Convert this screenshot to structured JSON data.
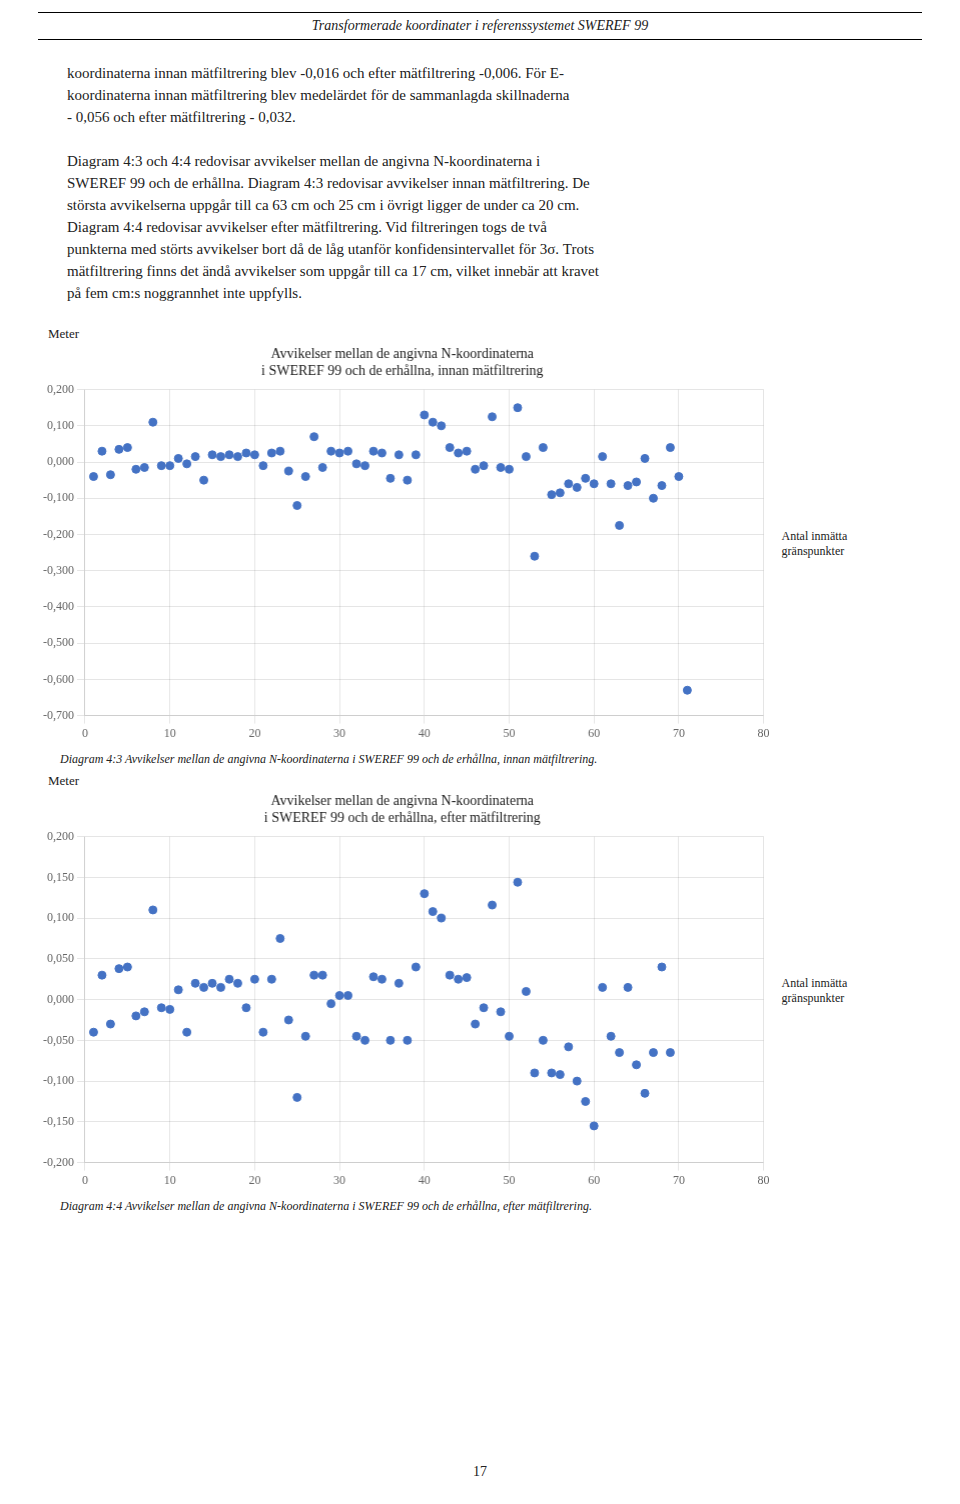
{
  "header": "Transformerade koordinater i referenssystemet SWEREF 99",
  "body_lines": [
    [
      "koordinaterna innan mätfiltrering blev -0,016 och efter mätfiltrering -0,006. För E-",
      "koordinaterna innan mätfiltrering blev medelärdet för de sammanlagda skillnaderna",
      "- 0,056 och efter mätfiltrering - 0,032."
    ],
    [
      "Diagram 4:3 och 4:4 redovisar avvikelser mellan de angivna N-koordinaterna i",
      "SWEREF 99 och de erhållna. Diagram 4:3 redovisar avvikelser innan mätfiltrering. De",
      "största avvikelserna uppgår till ca 63 cm och 25 cm i övrigt ligger de under ca 20 cm.",
      "Diagram 4:4 redovisar avvikelser efter mätfiltrering. Vid filtreringen togs de två",
      "punkterna med störts avvikelser bort då de låg utanför konfidensintervallet för 3σ. Trots",
      "mätfiltrering finns det ändå avvikelser som uppgår till ca 17 cm, vilket innebär att kravet",
      "på fem cm:s noggrannhet inte uppfylls."
    ]
  ],
  "page_number": "17",
  "chart_data": [
    {
      "type": "scatter",
      "title": [
        "Avvikelser mellan de angivna N-koordinaterna",
        "i SWEREF 99 och de erhållna, innan mätfiltrering"
      ],
      "ylabel": "Meter",
      "xlabel": "Antal inmätta\ngränspunkter",
      "caption": "Diagram 4:3 Avvikelser mellan de angivna N-koordinaterna i SWEREF 99 och de erhållna, innan mätfiltrering.",
      "x": [
        1,
        2,
        3,
        4,
        5,
        6,
        7,
        8,
        9,
        10,
        11,
        12,
        13,
        14,
        15,
        16,
        17,
        18,
        19,
        20,
        21,
        22,
        23,
        24,
        25,
        26,
        27,
        28,
        29,
        30,
        31,
        32,
        33,
        34,
        35,
        36,
        37,
        38,
        39,
        40,
        41,
        42,
        43,
        44,
        45,
        46,
        47,
        48,
        49,
        50,
        51,
        52,
        53,
        54,
        55,
        56,
        57,
        58,
        59,
        60,
        61,
        62,
        63,
        64,
        65,
        66,
        67,
        68,
        69,
        70,
        71
      ],
      "values": [
        -0.04,
        0.03,
        -0.035,
        0.035,
        0.04,
        -0.02,
        -0.015,
        0.11,
        -0.01,
        -0.01,
        0.01,
        -0.005,
        0.015,
        -0.05,
        0.02,
        0.015,
        0.02,
        0.015,
        0.025,
        0.02,
        -0.01,
        0.025,
        0.03,
        -0.025,
        -0.12,
        -0.04,
        0.07,
        -0.015,
        0.03,
        0.025,
        0.03,
        -0.005,
        -0.01,
        0.03,
        0.025,
        -0.045,
        0.02,
        -0.05,
        0.02,
        0.13,
        0.11,
        0.1,
        0.04,
        0.025,
        0.03,
        -0.02,
        -0.01,
        0.125,
        -0.015,
        -0.02,
        0.15,
        0.015,
        -0.26,
        0.04,
        -0.09,
        -0.085,
        -0.06,
        -0.07,
        -0.045,
        -0.06,
        0.015,
        -0.06,
        -0.175,
        -0.065,
        -0.055,
        0.01,
        -0.1,
        -0.065,
        0.04,
        -0.04,
        -0.63
      ],
      "color": "#4472C4",
      "xlim": [
        0,
        80
      ],
      "ylim": [
        -0.7,
        0.2
      ],
      "xticks": [
        0,
        10,
        20,
        30,
        40,
        50,
        60,
        70,
        80
      ],
      "yticks": [
        {
          "value": 0.2,
          "label": "0,200"
        },
        {
          "value": 0.1,
          "label": "0,100"
        },
        {
          "value": 0.0,
          "label": "0,000"
        },
        {
          "value": -0.1,
          "label": "-0,100"
        },
        {
          "value": -0.2,
          "label": "-0,200"
        },
        {
          "value": -0.3,
          "label": "-0,300"
        },
        {
          "value": -0.4,
          "label": "-0,400"
        },
        {
          "value": -0.5,
          "label": "-0,500"
        },
        {
          "value": -0.6,
          "label": "-0,600"
        },
        {
          "value": -0.7,
          "label": "-0,700"
        }
      ],
      "grid": true
    },
    {
      "type": "scatter",
      "title": [
        "Avvikelser mellan de angivna N-koordinaterna",
        "i SWEREF 99 och de erhållna, efter mätfiltrering"
      ],
      "ylabel": "Meter",
      "xlabel": "Antal inmätta\ngränspunkter",
      "caption": "Diagram 4:4 Avvikelser mellan de angivna N-koordinaterna i SWEREF 99 och de erhållna, efter mätfiltrering.",
      "x": [
        1,
        2,
        3,
        4,
        5,
        6,
        7,
        8,
        9,
        10,
        11,
        12,
        13,
        14,
        15,
        16,
        17,
        18,
        19,
        20,
        21,
        22,
        23,
        24,
        25,
        26,
        27,
        28,
        29,
        30,
        31,
        32,
        33,
        34,
        35,
        36,
        37,
        38,
        39,
        40,
        41,
        42,
        43,
        44,
        45,
        46,
        47,
        48,
        49,
        50,
        51,
        52,
        53,
        54,
        55,
        56,
        57,
        58,
        59,
        60,
        61,
        62,
        63,
        64,
        65,
        66,
        67,
        68,
        69
      ],
      "values": [
        -0.04,
        0.03,
        -0.03,
        0.038,
        0.04,
        -0.02,
        -0.015,
        0.11,
        -0.01,
        -0.012,
        0.012,
        -0.04,
        0.02,
        0.015,
        0.02,
        0.015,
        0.025,
        0.02,
        -0.01,
        0.025,
        -0.04,
        0.025,
        0.075,
        -0.025,
        -0.12,
        -0.045,
        0.03,
        0.03,
        -0.005,
        0.005,
        0.005,
        -0.045,
        -0.05,
        0.028,
        0.025,
        -0.05,
        0.02,
        -0.05,
        0.04,
        0.13,
        0.108,
        0.1,
        0.03,
        0.025,
        0.027,
        -0.03,
        -0.01,
        0.116,
        -0.015,
        -0.045,
        0.144,
        0.01,
        -0.09,
        -0.05,
        -0.09,
        -0.092,
        -0.058,
        -0.1,
        -0.125,
        -0.155,
        0.015,
        -0.045,
        -0.065,
        0.015,
        -0.08,
        -0.115,
        -0.065,
        0.04,
        -0.065
      ],
      "color": "#4472C4",
      "xlim": [
        0,
        80
      ],
      "ylim": [
        -0.2,
        0.2
      ],
      "xticks": [
        0,
        10,
        20,
        30,
        40,
        50,
        60,
        70,
        80
      ],
      "yticks": [
        {
          "value": 0.2,
          "label": "0,200"
        },
        {
          "value": 0.15,
          "label": "0,150"
        },
        {
          "value": 0.1,
          "label": "0,100"
        },
        {
          "value": 0.05,
          "label": "0,050"
        },
        {
          "value": 0.0,
          "label": "0,000"
        },
        {
          "value": -0.05,
          "label": "-0,050"
        },
        {
          "value": -0.1,
          "label": "-0,100"
        },
        {
          "value": -0.15,
          "label": "-0,150"
        },
        {
          "value": -0.2,
          "label": "-0,200"
        }
      ],
      "grid": true
    }
  ]
}
